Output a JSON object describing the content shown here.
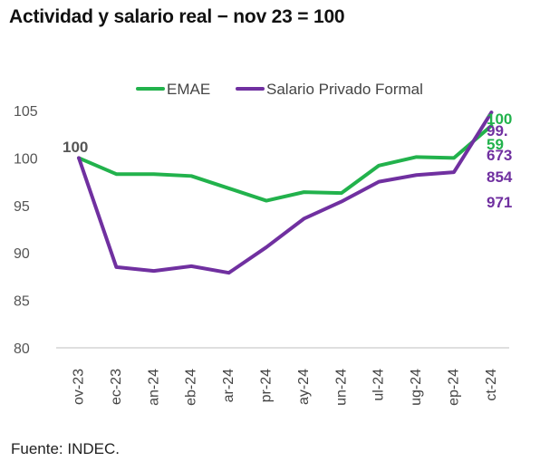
{
  "title": "Actividad y salario real − nov 23 = 100",
  "source": "Fuente: INDEC.",
  "colors": {
    "emae": "#22b24c",
    "salario": "#7030a0",
    "axis": "#bfbfbf",
    "tick": "#595959"
  },
  "chart_data": {
    "type": "line",
    "title": "Actividad y salario real − nov 23 = 100",
    "categories": [
      "nov-23",
      "dic-23",
      "ene-24",
      "feb-24",
      "mar-24",
      "abr-24",
      "may-24",
      "jun-24",
      "jul-24",
      "ago-24",
      "sep-24",
      "oct-24"
    ],
    "category_labels": [
      "ov-23",
      "ec-23",
      "an-24",
      "eb-24",
      "ar-24",
      "pr-24",
      "ay-24",
      "un-24",
      "ul-24",
      "ug-24",
      "ep-24",
      "ct-24"
    ],
    "series": [
      {
        "name": "EMAE",
        "color": "#22b24c",
        "values": [
          100,
          98.3,
          98.3,
          98.1,
          96.8,
          95.5,
          96.4,
          96.3,
          99.2,
          100.1,
          100.0,
          103.4
        ]
      },
      {
        "name": "Salario Privado Formal",
        "color": "#7030a0",
        "values": [
          100,
          88.5,
          88.1,
          88.6,
          87.9,
          90.6,
          93.6,
          95.4,
          97.5,
          98.2,
          98.5,
          104.8
        ]
      }
    ],
    "ylim": [
      80,
      105
    ],
    "yticks": [
      80,
      85,
      90,
      95,
      100,
      105
    ],
    "xlabel": "",
    "ylabel": "",
    "grid": false,
    "legend": "top",
    "data_labels": {
      "start": "100",
      "end": [
        {
          "text": "100",
          "series": "EMAE",
          "color": "#22b24c"
        },
        {
          "text": "99.",
          "series": "Salario Privado Formal",
          "color": "#7030a0"
        },
        {
          "text": "59",
          "series": "EMAE",
          "color": "#22b24c"
        },
        {
          "text": "673",
          "series": "Salario Privado Formal",
          "color": "#7030a0"
        },
        {
          "text": "854",
          "series": "Salario Privado Formal",
          "color": "#7030a0"
        },
        {
          "text": "971",
          "series": "Salario Privado Formal",
          "color": "#7030a0"
        }
      ]
    }
  }
}
